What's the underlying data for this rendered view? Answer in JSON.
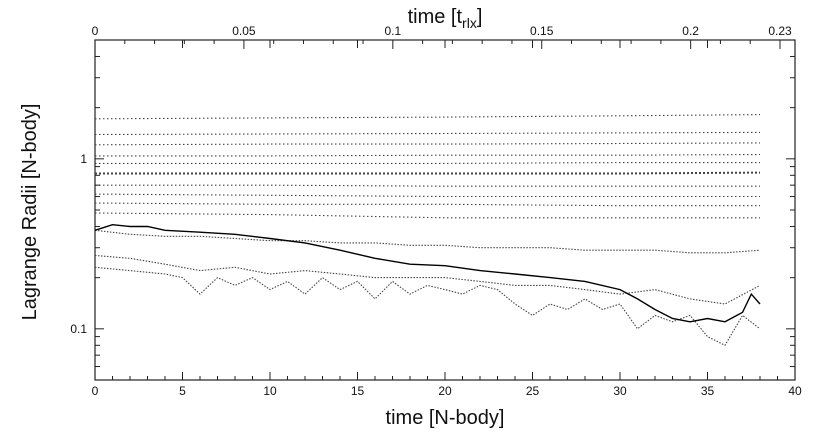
{
  "chart_data": {
    "type": "line",
    "title": "",
    "xlabel": "time [N-body]",
    "ylabel": "Lagrange Radii [N-body]",
    "x2label": "time [t_rlx]",
    "x2label_parts": {
      "base": "time [t",
      "sub": "rlx",
      "end": "]"
    },
    "xlim": [
      0,
      40
    ],
    "ylim": [
      0.05,
      5
    ],
    "yscale": "log",
    "x2lim": [
      0,
      0.23
    ],
    "x_ticks": [
      0,
      5,
      10,
      15,
      20,
      25,
      30,
      35,
      40
    ],
    "x_tick_labels": [
      "0",
      "5",
      "10",
      "15",
      "20",
      "25",
      "30",
      "35",
      "40"
    ],
    "x2_ticks": [
      0,
      0.05,
      0.1,
      0.15,
      0.2,
      0.23
    ],
    "x2_tick_labels": [
      "0",
      "0.05",
      "0.1",
      "0.15",
      "0.2",
      "0.23"
    ],
    "y_ticks": [
      0.1,
      1
    ],
    "y_tick_labels": [
      "0.1",
      "1"
    ],
    "grid": false,
    "legend": "none",
    "series": [
      {
        "style": "dotted",
        "dash": "1.5 2.5",
        "points": [
          [
            0,
            1.72
          ],
          [
            10,
            1.74
          ],
          [
            20,
            1.76
          ],
          [
            30,
            1.79
          ],
          [
            38,
            1.82
          ]
        ]
      },
      {
        "style": "dotted",
        "dash": "1.5 2.5",
        "points": [
          [
            0,
            1.39
          ],
          [
            10,
            1.4
          ],
          [
            20,
            1.41
          ],
          [
            30,
            1.42
          ],
          [
            38,
            1.43
          ]
        ]
      },
      {
        "style": "dotted",
        "dash": "1.5 2.5",
        "points": [
          [
            0,
            1.21
          ],
          [
            10,
            1.22
          ],
          [
            20,
            1.22
          ],
          [
            30,
            1.23
          ],
          [
            38,
            1.24
          ]
        ]
      },
      {
        "style": "dotted",
        "dash": "1.5 2.5",
        "points": [
          [
            0,
            1.04
          ],
          [
            10,
            1.04
          ],
          [
            20,
            1.05
          ],
          [
            30,
            1.05
          ],
          [
            38,
            1.06
          ]
        ]
      },
      {
        "style": "dotted",
        "dash": "1.5 2.5",
        "points": [
          [
            0,
            0.94
          ],
          [
            10,
            0.94
          ],
          [
            20,
            0.94
          ],
          [
            30,
            0.95
          ],
          [
            38,
            0.95
          ]
        ]
      },
      {
        "style": "dotted-bold",
        "dash": "2 2",
        "points": [
          [
            0,
            0.82
          ],
          [
            10,
            0.82
          ],
          [
            20,
            0.82
          ],
          [
            30,
            0.82
          ],
          [
            38,
            0.83
          ]
        ]
      },
      {
        "style": "dotted",
        "dash": "1.5 2.5",
        "points": [
          [
            0,
            0.7
          ],
          [
            10,
            0.7
          ],
          [
            20,
            0.69
          ],
          [
            30,
            0.69
          ],
          [
            38,
            0.69
          ]
        ]
      },
      {
        "style": "dotted",
        "dash": "1.5 2.5",
        "points": [
          [
            0,
            0.62
          ],
          [
            10,
            0.61
          ],
          [
            20,
            0.6
          ],
          [
            30,
            0.6
          ],
          [
            38,
            0.6
          ]
        ]
      },
      {
        "style": "dotted",
        "dash": "1.5 2.5",
        "points": [
          [
            0,
            0.55
          ],
          [
            10,
            0.54
          ],
          [
            20,
            0.54
          ],
          [
            30,
            0.53
          ],
          [
            38,
            0.53
          ]
        ]
      },
      {
        "style": "dotted",
        "dash": "1.5 2.5",
        "points": [
          [
            0,
            0.48
          ],
          [
            10,
            0.47
          ],
          [
            20,
            0.45
          ],
          [
            30,
            0.45
          ],
          [
            38,
            0.45
          ]
        ]
      },
      {
        "style": "dotted-noisy",
        "dash": "1.5 1.5",
        "points": [
          [
            0,
            0.38
          ],
          [
            2,
            0.36
          ],
          [
            4,
            0.35
          ],
          [
            6,
            0.35
          ],
          [
            8,
            0.34
          ],
          [
            10,
            0.33
          ],
          [
            12,
            0.33
          ],
          [
            14,
            0.32
          ],
          [
            16,
            0.32
          ],
          [
            18,
            0.31
          ],
          [
            20,
            0.31
          ],
          [
            22,
            0.3
          ],
          [
            24,
            0.3
          ],
          [
            26,
            0.3
          ],
          [
            28,
            0.29
          ],
          [
            30,
            0.29
          ],
          [
            32,
            0.29
          ],
          [
            34,
            0.28
          ],
          [
            36,
            0.28
          ],
          [
            38,
            0.29
          ]
        ]
      },
      {
        "style": "dotted-noisy",
        "dash": "1.5 1.5",
        "points": [
          [
            0,
            0.27
          ],
          [
            2,
            0.26
          ],
          [
            4,
            0.24
          ],
          [
            6,
            0.22
          ],
          [
            8,
            0.23
          ],
          [
            10,
            0.21
          ],
          [
            12,
            0.22
          ],
          [
            14,
            0.21
          ],
          [
            16,
            0.2
          ],
          [
            18,
            0.2
          ],
          [
            20,
            0.2
          ],
          [
            22,
            0.19
          ],
          [
            24,
            0.18
          ],
          [
            26,
            0.18
          ],
          [
            28,
            0.17
          ],
          [
            30,
            0.16
          ],
          [
            32,
            0.17
          ],
          [
            34,
            0.15
          ],
          [
            36,
            0.14
          ],
          [
            38,
            0.18
          ]
        ]
      },
      {
        "style": "dotted-noisy",
        "dash": "1.5 1.5",
        "points": [
          [
            0,
            0.23
          ],
          [
            2,
            0.22
          ],
          [
            4,
            0.21
          ],
          [
            5,
            0.2
          ],
          [
            6,
            0.16
          ],
          [
            7,
            0.2
          ],
          [
            8,
            0.18
          ],
          [
            9,
            0.2
          ],
          [
            10,
            0.17
          ],
          [
            11,
            0.19
          ],
          [
            12,
            0.16
          ],
          [
            13,
            0.2
          ],
          [
            14,
            0.17
          ],
          [
            15,
            0.19
          ],
          [
            16,
            0.15
          ],
          [
            17,
            0.19
          ],
          [
            18,
            0.16
          ],
          [
            19,
            0.18
          ],
          [
            20,
            0.17
          ],
          [
            21,
            0.16
          ],
          [
            22,
            0.18
          ],
          [
            23,
            0.17
          ],
          [
            24,
            0.14
          ],
          [
            25,
            0.12
          ],
          [
            26,
            0.14
          ],
          [
            27,
            0.13
          ],
          [
            28,
            0.15
          ],
          [
            29,
            0.13
          ],
          [
            30,
            0.14
          ],
          [
            31,
            0.1
          ],
          [
            32,
            0.12
          ],
          [
            33,
            0.11
          ],
          [
            34,
            0.12
          ],
          [
            35,
            0.09
          ],
          [
            36,
            0.08
          ],
          [
            37,
            0.12
          ],
          [
            38,
            0.1
          ]
        ]
      },
      {
        "style": "solid",
        "dash": "",
        "points": [
          [
            0,
            0.38
          ],
          [
            1,
            0.41
          ],
          [
            2,
            0.4
          ],
          [
            3,
            0.4
          ],
          [
            4,
            0.38
          ],
          [
            6,
            0.37
          ],
          [
            8,
            0.36
          ],
          [
            10,
            0.34
          ],
          [
            12,
            0.32
          ],
          [
            14,
            0.29
          ],
          [
            16,
            0.26
          ],
          [
            18,
            0.24
          ],
          [
            20,
            0.235
          ],
          [
            22,
            0.22
          ],
          [
            24,
            0.21
          ],
          [
            26,
            0.2
          ],
          [
            28,
            0.19
          ],
          [
            30,
            0.17
          ],
          [
            31,
            0.15
          ],
          [
            32,
            0.13
          ],
          [
            33,
            0.115
          ],
          [
            34,
            0.11
          ],
          [
            35,
            0.115
          ],
          [
            36,
            0.11
          ],
          [
            37,
            0.125
          ],
          [
            37.5,
            0.16
          ],
          [
            38,
            0.14
          ]
        ]
      }
    ]
  }
}
